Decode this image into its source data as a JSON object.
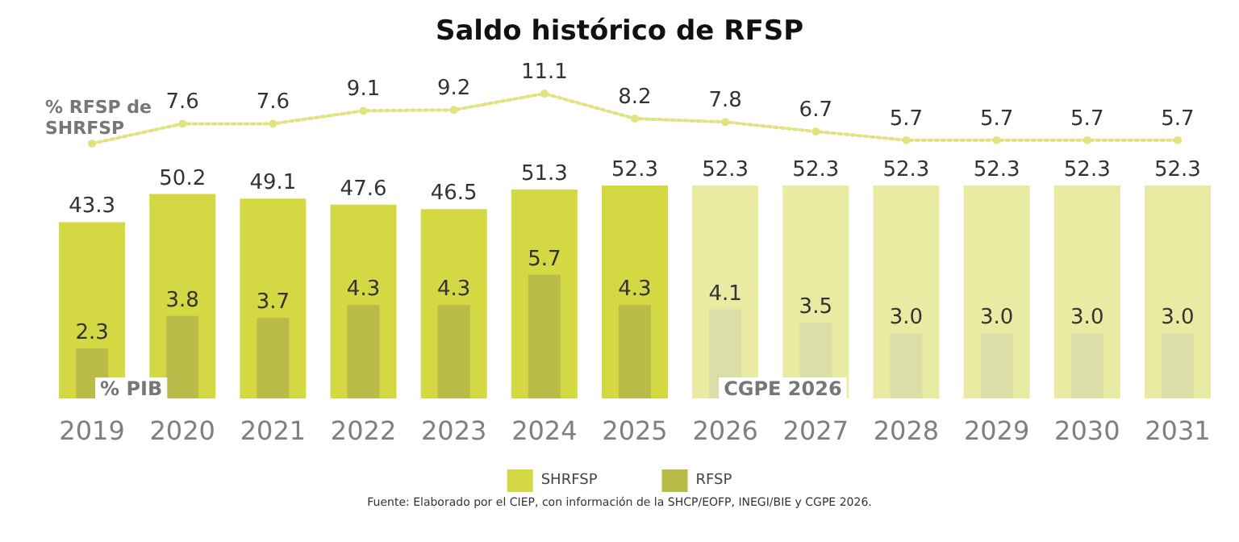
{
  "chart_data": [
    {
      "type": "line",
      "title": "Saldo histórico de RFSP",
      "categories": [
        "2019",
        "2020",
        "2021",
        "2022",
        "2023",
        "2024",
        "2025",
        "2026",
        "2027",
        "2028",
        "2029",
        "2030",
        "2031"
      ],
      "series": [
        {
          "name": "% RFSP de SHRFSP",
          "color": "#e0e37f",
          "values": [
            5.3,
            7.6,
            7.6,
            9.1,
            9.2,
            11.1,
            8.2,
            7.8,
            6.7,
            5.7,
            5.7,
            5.7,
            5.7
          ],
          "value_labels": [
            null,
            "7.6",
            "7.6",
            "9.1",
            "9.2",
            "11.1",
            "8.2",
            "7.8",
            "6.7",
            "5.7",
            "5.7",
            "5.7",
            "5.7"
          ]
        }
      ],
      "marker": "circle",
      "line_style": "dotted",
      "tick_labels": false
    },
    {
      "type": "bar",
      "categories": [
        "2019",
        "2020",
        "2021",
        "2022",
        "2023",
        "2024",
        "2025",
        "2026",
        "2027",
        "2028",
        "2029",
        "2030",
        "2031"
      ],
      "series": [
        {
          "name": "SHRFSP",
          "color": "#d3d843",
          "values": [
            43.3,
            50.2,
            49.1,
            47.6,
            46.5,
            51.3,
            52.3,
            52.3,
            52.3,
            52.3,
            52.3,
            52.3,
            52.3
          ],
          "colors": [
            "#d3d843",
            "#d3d843",
            "#d3d843",
            "#d3d843",
            "#d3d843",
            "#d3d843",
            "#d3d843",
            "#e9eba3",
            "#e9eba3",
            "#e9eba3",
            "#e9eba3",
            "#e9eba3",
            "#e9eba3"
          ],
          "value_labels": [
            "43.3",
            "50.2",
            "49.1",
            "47.6",
            "46.5",
            "51.3",
            "52.3",
            "52.3",
            "52.3",
            "52.3",
            "52.3",
            "52.3",
            "52.3"
          ]
        },
        {
          "name": "RFSP",
          "axis": "y2",
          "color": "#b9bc48",
          "values": [
            2.3,
            3.8,
            3.7,
            4.3,
            4.3,
            5.7,
            4.3,
            4.1,
            3.5,
            3.0,
            3.0,
            3.0,
            3.0
          ],
          "colors": [
            "#b9bc48",
            "#b9bc48",
            "#b9bc48",
            "#b9bc48",
            "#b9bc48",
            "#b9bc48",
            "#b9bc48",
            "#dcdea9",
            "#dcdea9",
            "#dcdea9",
            "#dcdea9",
            "#dcdea9",
            "#dcdea9"
          ],
          "value_labels": [
            "2.3",
            "3.8",
            "3.7",
            "4.3",
            "4.3",
            "5.7",
            "4.3",
            "4.1",
            "3.5",
            "3.0",
            "3.0",
            "3.0",
            "3.0"
          ]
        }
      ],
      "legend": "bottom",
      "annotations": [
        "% PIB",
        "CGPE 2026",
        "Fuente: Elaborado por el CIEP, con información de la SHCP/EOFP, INEGI/BIE y CGPE 2026."
      ]
    }
  ]
}
